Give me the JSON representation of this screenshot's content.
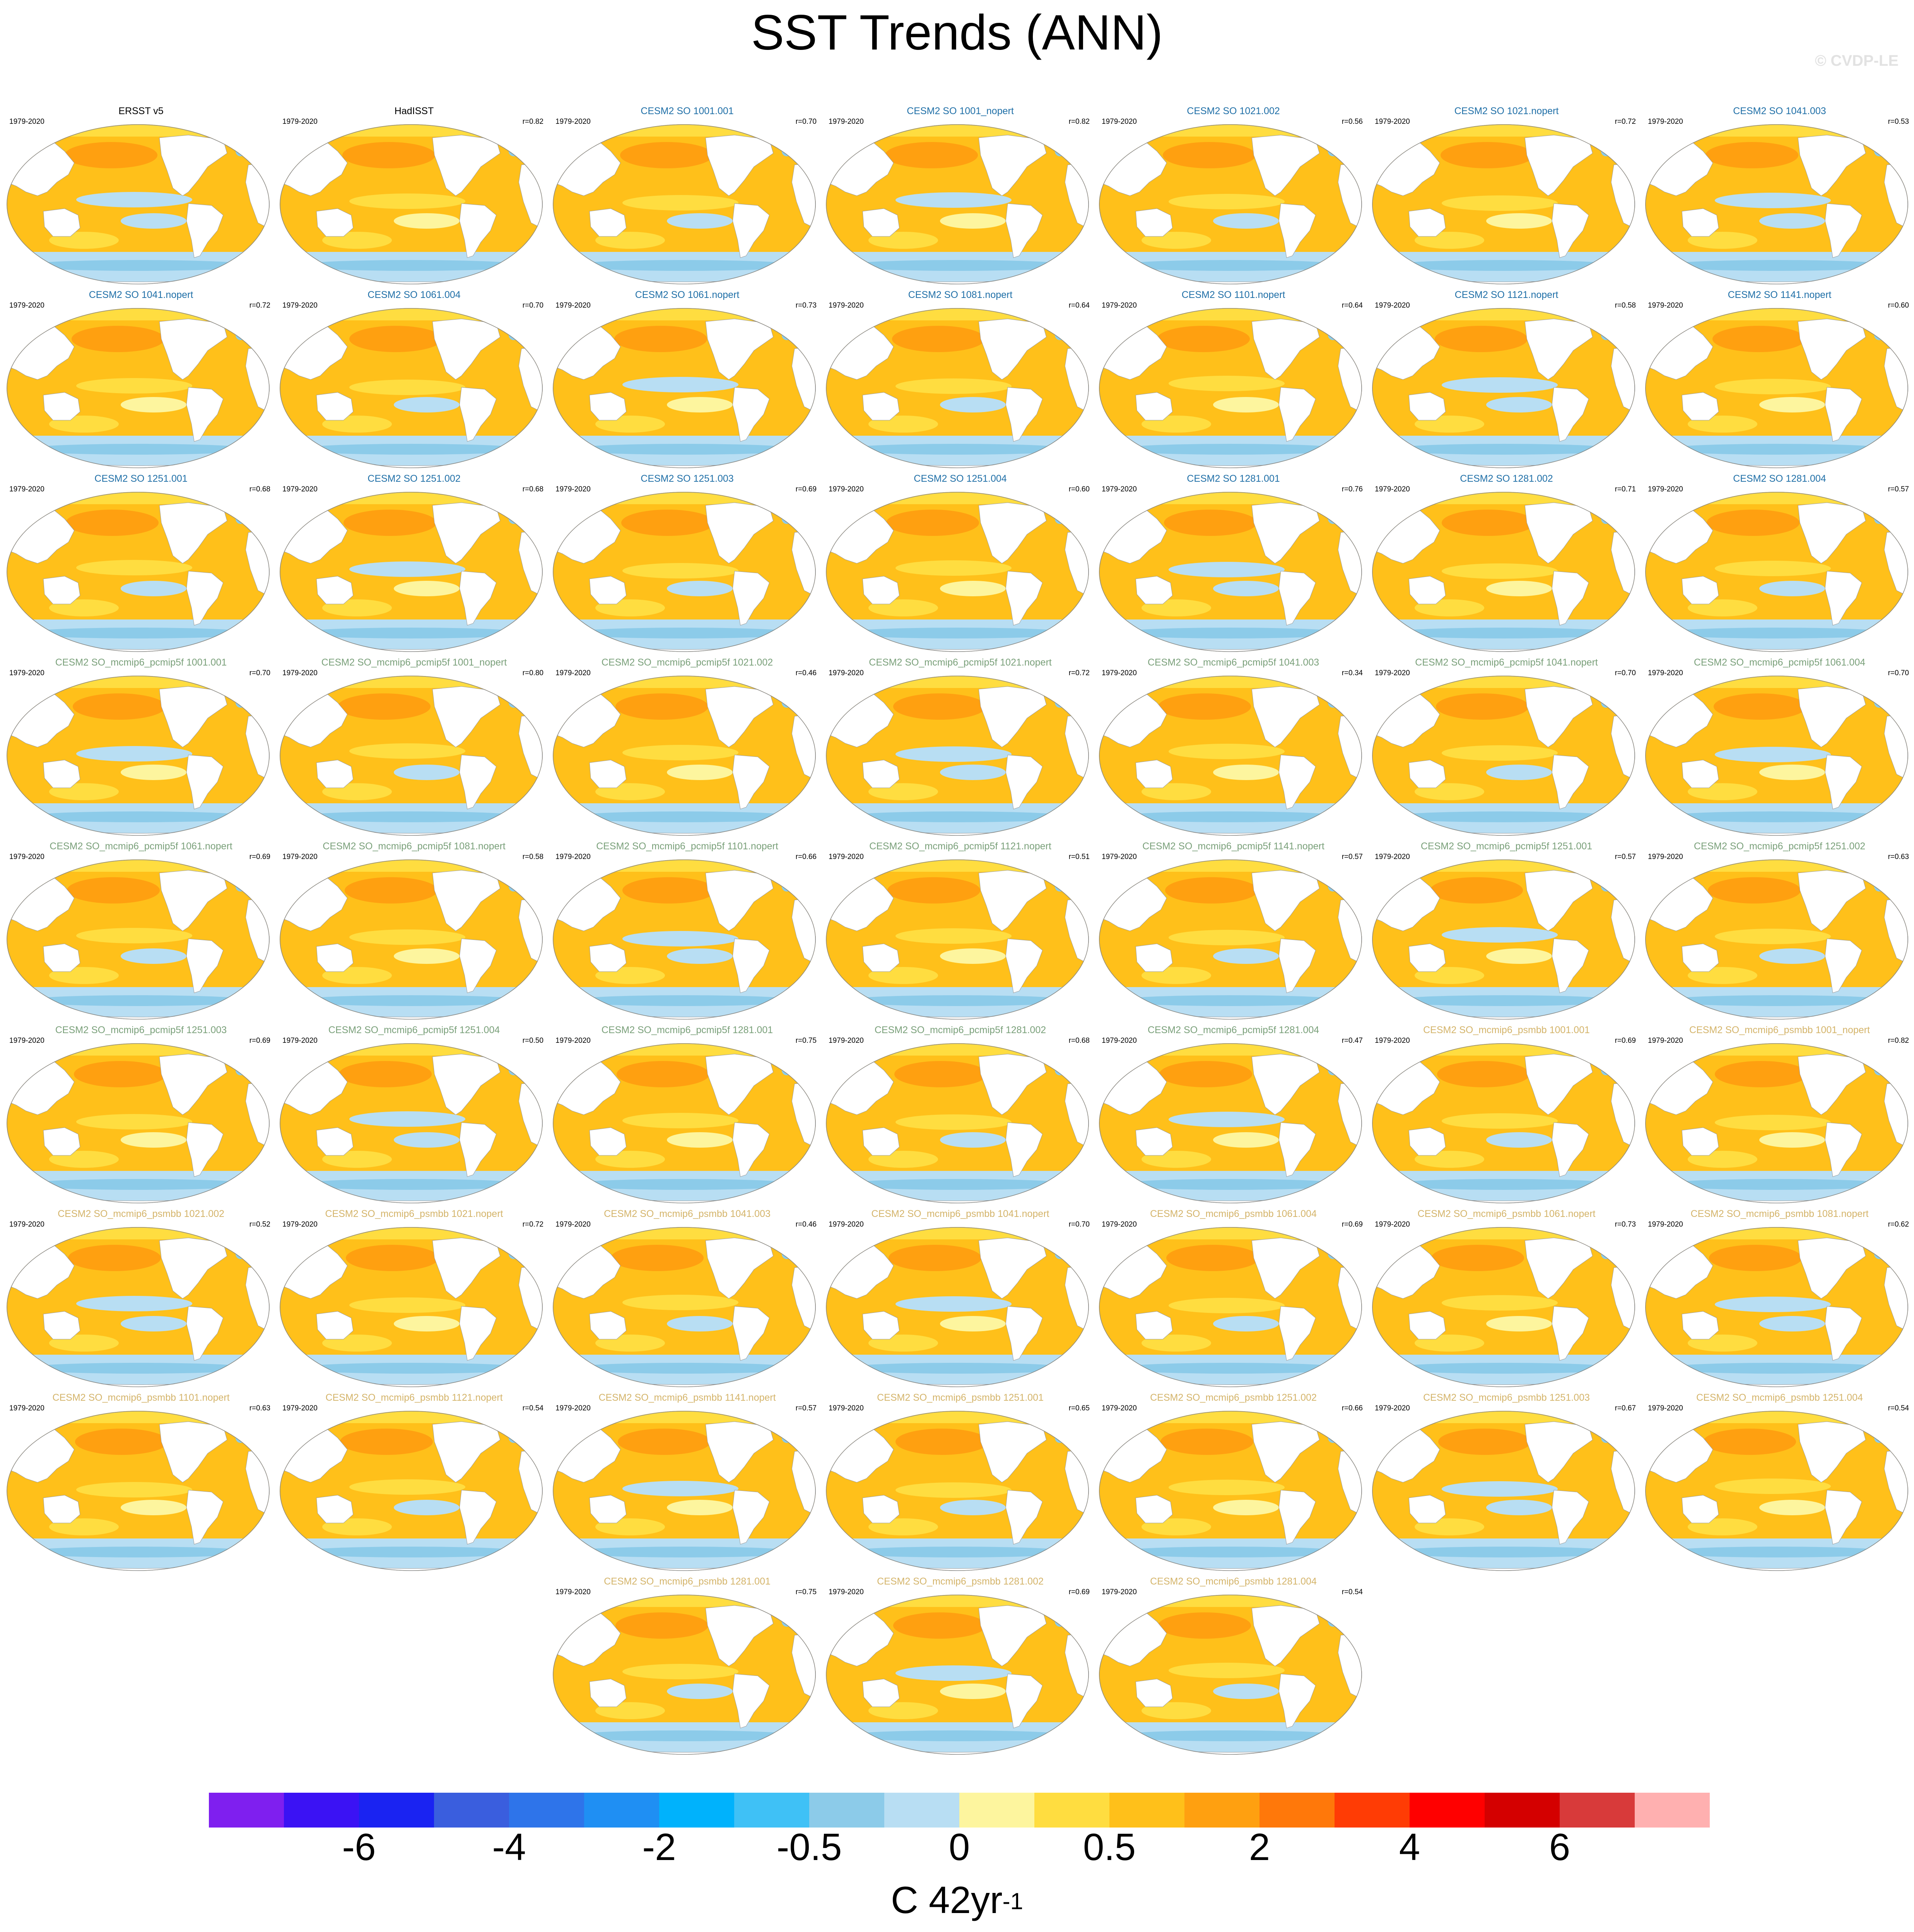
{
  "title": "SST Trends (ANN)",
  "watermark": "© CVDP-LE",
  "chart_data": {
    "type": "heatmap",
    "map_projection": "global ellipse (Robinson-like), Pacific centered",
    "period": "1979-2020",
    "panel_title_colors": {
      "observations": "#000000",
      "CESM2 SO": "#1f6fa7",
      "CESM2 SO_mcmip6_pcmip5f": "#7aa07a",
      "CESM2 SO_mcmip6_psmbb": "#d4b46a"
    },
    "panels": [
      {
        "title": "ERSST v5",
        "r": "",
        "group": "observations"
      },
      {
        "title": "HadISST",
        "r": "r=0.82",
        "group": "observations"
      },
      {
        "title": "CESM2 SO 1001.001",
        "r": "r=0.70",
        "group": "CESM2 SO"
      },
      {
        "title": "CESM2 SO 1001_nopert",
        "r": "r=0.82",
        "group": "CESM2 SO"
      },
      {
        "title": "CESM2 SO 1021.002",
        "r": "r=0.56",
        "group": "CESM2 SO"
      },
      {
        "title": "CESM2 SO 1021.nopert",
        "r": "r=0.72",
        "group": "CESM2 SO"
      },
      {
        "title": "CESM2 SO 1041.003",
        "r": "r=0.53",
        "group": "CESM2 SO"
      },
      {
        "title": "CESM2 SO 1041.nopert",
        "r": "r=0.72",
        "group": "CESM2 SO"
      },
      {
        "title": "CESM2 SO 1061.004",
        "r": "r=0.70",
        "group": "CESM2 SO"
      },
      {
        "title": "CESM2 SO 1061.nopert",
        "r": "r=0.73",
        "group": "CESM2 SO"
      },
      {
        "title": "CESM2 SO 1081.nopert",
        "r": "r=0.64",
        "group": "CESM2 SO"
      },
      {
        "title": "CESM2 SO 1101.nopert",
        "r": "r=0.64",
        "group": "CESM2 SO"
      },
      {
        "title": "CESM2 SO 1121.nopert",
        "r": "r=0.58",
        "group": "CESM2 SO"
      },
      {
        "title": "CESM2 SO 1141.nopert",
        "r": "r=0.60",
        "group": "CESM2 SO"
      },
      {
        "title": "CESM2 SO 1251.001",
        "r": "r=0.68",
        "group": "CESM2 SO"
      },
      {
        "title": "CESM2 SO 1251.002",
        "r": "r=0.68",
        "group": "CESM2 SO"
      },
      {
        "title": "CESM2 SO 1251.003",
        "r": "r=0.69",
        "group": "CESM2 SO"
      },
      {
        "title": "CESM2 SO 1251.004",
        "r": "r=0.60",
        "group": "CESM2 SO"
      },
      {
        "title": "CESM2 SO 1281.001",
        "r": "r=0.76",
        "group": "CESM2 SO"
      },
      {
        "title": "CESM2 SO 1281.002",
        "r": "r=0.71",
        "group": "CESM2 SO"
      },
      {
        "title": "CESM2 SO 1281.004",
        "r": "r=0.57",
        "group": "CESM2 SO"
      },
      {
        "title": "CESM2 SO_mcmip6_pcmip5f 1001.001",
        "r": "r=0.70",
        "group": "CESM2 SO_mcmip6_pcmip5f"
      },
      {
        "title": "CESM2 SO_mcmip6_pcmip5f 1001_nopert",
        "r": "r=0.80",
        "group": "CESM2 SO_mcmip6_pcmip5f"
      },
      {
        "title": "CESM2 SO_mcmip6_pcmip5f 1021.002",
        "r": "r=0.46",
        "group": "CESM2 SO_mcmip6_pcmip5f"
      },
      {
        "title": "CESM2 SO_mcmip6_pcmip5f 1021.nopert",
        "r": "r=0.72",
        "group": "CESM2 SO_mcmip6_pcmip5f"
      },
      {
        "title": "CESM2 SO_mcmip6_pcmip5f 1041.003",
        "r": "r=0.34",
        "group": "CESM2 SO_mcmip6_pcmip5f"
      },
      {
        "title": "CESM2 SO_mcmip6_pcmip5f 1041.nopert",
        "r": "r=0.70",
        "group": "CESM2 SO_mcmip6_pcmip5f"
      },
      {
        "title": "CESM2 SO_mcmip6_pcmip5f 1061.004",
        "r": "r=0.70",
        "group": "CESM2 SO_mcmip6_pcmip5f"
      },
      {
        "title": "CESM2 SO_mcmip6_pcmip5f 1061.nopert",
        "r": "r=0.69",
        "group": "CESM2 SO_mcmip6_pcmip5f"
      },
      {
        "title": "CESM2 SO_mcmip6_pcmip5f 1081.nopert",
        "r": "r=0.58",
        "group": "CESM2 SO_mcmip6_pcmip5f"
      },
      {
        "title": "CESM2 SO_mcmip6_pcmip5f 1101.nopert",
        "r": "r=0.66",
        "group": "CESM2 SO_mcmip6_pcmip5f"
      },
      {
        "title": "CESM2 SO_mcmip6_pcmip5f 1121.nopert",
        "r": "r=0.51",
        "group": "CESM2 SO_mcmip6_pcmip5f"
      },
      {
        "title": "CESM2 SO_mcmip6_pcmip5f 1141.nopert",
        "r": "r=0.57",
        "group": "CESM2 SO_mcmip6_pcmip5f"
      },
      {
        "title": "CESM2 SO_mcmip6_pcmip5f 1251.001",
        "r": "r=0.57",
        "group": "CESM2 SO_mcmip6_pcmip5f"
      },
      {
        "title": "CESM2 SO_mcmip6_pcmip5f 1251.002",
        "r": "r=0.63",
        "group": "CESM2 SO_mcmip6_pcmip5f"
      },
      {
        "title": "CESM2 SO_mcmip6_pcmip5f 1251.003",
        "r": "r=0.69",
        "group": "CESM2 SO_mcmip6_pcmip5f"
      },
      {
        "title": "CESM2 SO_mcmip6_pcmip5f 1251.004",
        "r": "r=0.50",
        "group": "CESM2 SO_mcmip6_pcmip5f"
      },
      {
        "title": "CESM2 SO_mcmip6_pcmip5f 1281.001",
        "r": "r=0.75",
        "group": "CESM2 SO_mcmip6_pcmip5f"
      },
      {
        "title": "CESM2 SO_mcmip6_pcmip5f 1281.002",
        "r": "r=0.68",
        "group": "CESM2 SO_mcmip6_pcmip5f"
      },
      {
        "title": "CESM2 SO_mcmip6_pcmip5f 1281.004",
        "r": "r=0.47",
        "group": "CESM2 SO_mcmip6_pcmip5f"
      },
      {
        "title": "CESM2 SO_mcmip6_psmbb 1001.001",
        "r": "r=0.69",
        "group": "CESM2 SO_mcmip6_psmbb"
      },
      {
        "title": "CESM2 SO_mcmip6_psmbb 1001_nopert",
        "r": "r=0.82",
        "group": "CESM2 SO_mcmip6_psmbb"
      },
      {
        "title": "CESM2 SO_mcmip6_psmbb 1021.002",
        "r": "r=0.52",
        "group": "CESM2 SO_mcmip6_psmbb"
      },
      {
        "title": "CESM2 SO_mcmip6_psmbb 1021.nopert",
        "r": "r=0.72",
        "group": "CESM2 SO_mcmip6_psmbb"
      },
      {
        "title": "CESM2 SO_mcmip6_psmbb 1041.003",
        "r": "r=0.46",
        "group": "CESM2 SO_mcmip6_psmbb"
      },
      {
        "title": "CESM2 SO_mcmip6_psmbb 1041.nopert",
        "r": "r=0.70",
        "group": "CESM2 SO_mcmip6_psmbb"
      },
      {
        "title": "CESM2 SO_mcmip6_psmbb 1061.004",
        "r": "r=0.69",
        "group": "CESM2 SO_mcmip6_psmbb"
      },
      {
        "title": "CESM2 SO_mcmip6_psmbb 1061.nopert",
        "r": "r=0.73",
        "group": "CESM2 SO_mcmip6_psmbb"
      },
      {
        "title": "CESM2 SO_mcmip6_psmbb 1081.nopert",
        "r": "r=0.62",
        "group": "CESM2 SO_mcmip6_psmbb"
      },
      {
        "title": "CESM2 SO_mcmip6_psmbb 1101.nopert",
        "r": "r=0.63",
        "group": "CESM2 SO_mcmip6_psmbb"
      },
      {
        "title": "CESM2 SO_mcmip6_psmbb 1121.nopert",
        "r": "r=0.54",
        "group": "CESM2 SO_mcmip6_psmbb"
      },
      {
        "title": "CESM2 SO_mcmip6_psmbb 1141.nopert",
        "r": "r=0.57",
        "group": "CESM2 SO_mcmip6_psmbb"
      },
      {
        "title": "CESM2 SO_mcmip6_psmbb 1251.001",
        "r": "r=0.65",
        "group": "CESM2 SO_mcmip6_psmbb"
      },
      {
        "title": "CESM2 SO_mcmip6_psmbb 1251.002",
        "r": "r=0.66",
        "group": "CESM2 SO_mcmip6_psmbb"
      },
      {
        "title": "CESM2 SO_mcmip6_psmbb 1251.003",
        "r": "r=0.67",
        "group": "CESM2 SO_mcmip6_psmbb"
      },
      {
        "title": "CESM2 SO_mcmip6_psmbb 1251.004",
        "r": "r=0.54",
        "group": "CESM2 SO_mcmip6_psmbb"
      },
      {
        "title": "CESM2 SO_mcmip6_psmbb 1281.001",
        "r": "r=0.75",
        "group": "CESM2 SO_mcmip6_psmbb"
      },
      {
        "title": "CESM2 SO_mcmip6_psmbb 1281.002",
        "r": "r=0.69",
        "group": "CESM2 SO_mcmip6_psmbb"
      },
      {
        "title": "CESM2 SO_mcmip6_psmbb 1281.004",
        "r": "r=0.54",
        "group": "CESM2 SO_mcmip6_psmbb"
      }
    ],
    "colorbar": {
      "units_base": "C 42yr",
      "units_exponent": "-1",
      "tick_labels": [
        "-6",
        "-4",
        "-2",
        "-0.5",
        "0",
        "0.5",
        "2",
        "4",
        "6"
      ],
      "colors": [
        "#7f1fef",
        "#3b12f4",
        "#1a23f2",
        "#3a5ede",
        "#2e74ea",
        "#1f8ff3",
        "#00b2fc",
        "#3fc1f6",
        "#8ccbe9",
        "#b8def3",
        "#fdf59e",
        "#ffdd40",
        "#ffc01a",
        "#ffa010",
        "#ff780a",
        "#ff3c05",
        "#ff0000",
        "#d40000",
        "#d83a3a",
        "#ffb0b0"
      ]
    },
    "map_colors": {
      "ocean_warm": "#ffc01a",
      "ocean_strong_warm": "#ffa010",
      "ocean_weak_warm": "#ffdd40",
      "ocean_near_zero": "#fdf59e",
      "ocean_cool": "#b8def3",
      "ocean_cooler": "#8ccbe9",
      "land": "#ffffff",
      "outline": "#999999"
    }
  }
}
